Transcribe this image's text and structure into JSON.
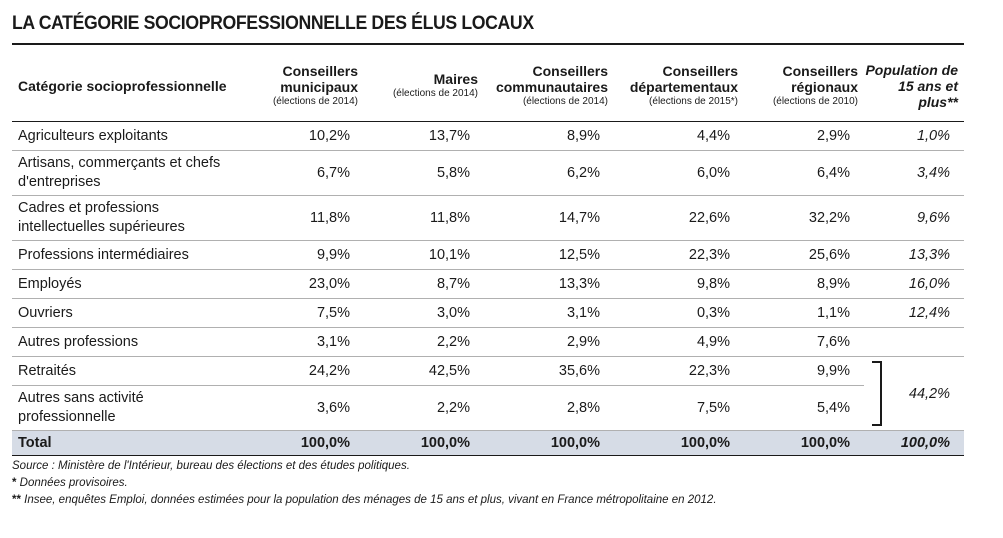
{
  "title": "LA CATÉGORIE SOCIOPROFESSIONNELLE DES ÉLUS LOCAUX",
  "headers": [
    {
      "label": "Catégorie socioprofessionnelle",
      "sub": ""
    },
    {
      "label": "Conseillers municipaux",
      "sub": "(élections de 2014)"
    },
    {
      "label": "Maires",
      "sub": "(élections de 2014)"
    },
    {
      "label": "Conseillers communautaires",
      "sub": "(élections de 2014)"
    },
    {
      "label": "Conseillers départementaux",
      "sub": "(élections de 2015*)"
    },
    {
      "label": "Conseillers régionaux",
      "sub": "(élections de 2010)"
    },
    {
      "label": "Population de 15 ans et plus**",
      "sub": ""
    }
  ],
  "rows": [
    {
      "label": "Agriculteurs exploitants",
      "values": [
        "10,2%",
        "13,7%",
        "8,9%",
        "4,4%",
        "2,9%",
        "1,0%"
      ]
    },
    {
      "label": "Artisans, commerçants et chefs d'entreprises",
      "values": [
        "6,7%",
        "5,8%",
        "6,2%",
        "6,0%",
        "6,4%",
        "3,4%"
      ]
    },
    {
      "label": "Cadres et professions intellectuelles supérieures",
      "values": [
        "11,8%",
        "11,8%",
        "14,7%",
        "22,6%",
        "32,2%",
        "9,6%"
      ]
    },
    {
      "label": "Professions intermédiaires",
      "values": [
        "9,9%",
        "10,1%",
        "12,5%",
        "22,3%",
        "25,6%",
        "13,3%"
      ]
    },
    {
      "label": "Employés",
      "values": [
        "23,0%",
        "8,7%",
        "13,3%",
        "9,8%",
        "8,9%",
        "16,0%"
      ]
    },
    {
      "label": "Ouvriers",
      "values": [
        "7,5%",
        "3,0%",
        "3,1%",
        "0,3%",
        "1,1%",
        "12,4%"
      ]
    },
    {
      "label": "Autres professions",
      "values": [
        "3,1%",
        "2,2%",
        "2,9%",
        "4,9%",
        "7,6%"
      ]
    },
    {
      "label": "Retraités",
      "values": [
        "24,2%",
        "42,5%",
        "35,6%",
        "22,3%",
        "9,9%"
      ]
    },
    {
      "label": "Autres sans activité professionnelle",
      "values": [
        "3,6%",
        "2,2%",
        "2,8%",
        "7,5%",
        "5,4%"
      ]
    }
  ],
  "merged_population_value": "44,2%",
  "total": {
    "label": "Total",
    "values": [
      "100,0%",
      "100,0%",
      "100,0%",
      "100,0%",
      "100,0%",
      "100,0%"
    ]
  },
  "notes": {
    "source": "Source : Ministère de l'Intérieur, bureau des élections et des études politiques.",
    "note1_mark": "*",
    "note1": " Données provisoires.",
    "note2_mark": "**",
    "note2": " Insee, enquêtes Emploi, données estimées pour la population des ménages de 15 ans et plus, vivant en France métropolitaine en 2012."
  }
}
